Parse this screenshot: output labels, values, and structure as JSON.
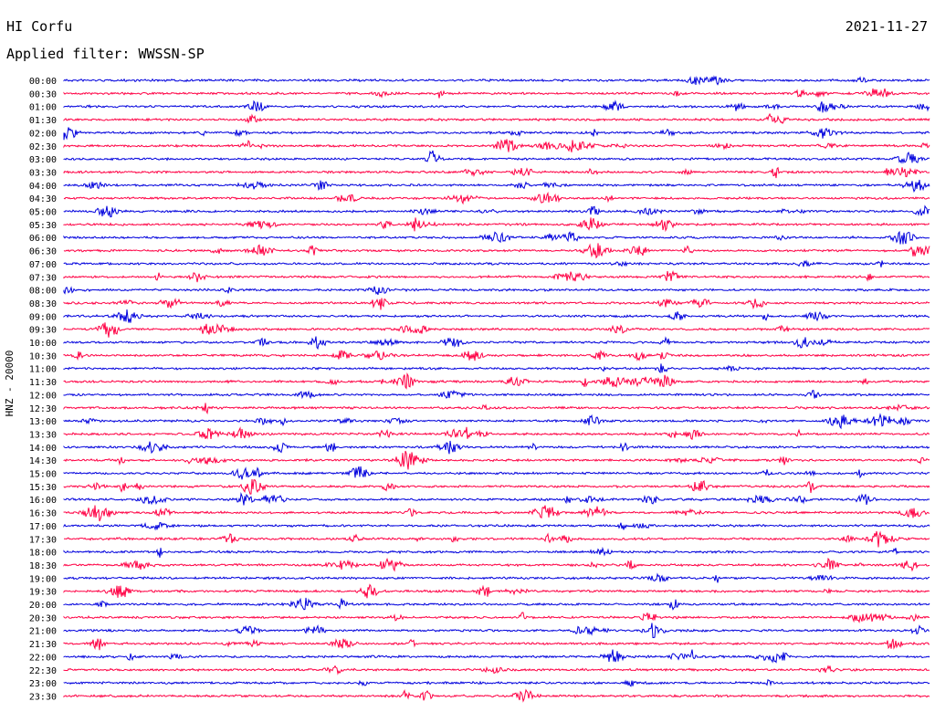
{
  "header": {
    "station": "HI Corfu",
    "date": "2021-11-27",
    "filter": "Applied filter: WWSSN-SP"
  },
  "colors": {
    "odd_trace": "#0000dd",
    "even_trace": "#ff0044",
    "text": "#000000"
  },
  "chart_data": {
    "type": "line",
    "ylabel": "HNZ - 20000",
    "rows": [
      {
        "label": "00:00",
        "color": "blue"
      },
      {
        "label": "00:30",
        "color": "red"
      },
      {
        "label": "01:00",
        "color": "blue"
      },
      {
        "label": "01:30",
        "color": "red"
      },
      {
        "label": "02:00",
        "color": "blue"
      },
      {
        "label": "02:30",
        "color": "red"
      },
      {
        "label": "03:00",
        "color": "blue"
      },
      {
        "label": "03:30",
        "color": "red"
      },
      {
        "label": "04:00",
        "color": "blue"
      },
      {
        "label": "04:30",
        "color": "red"
      },
      {
        "label": "05:00",
        "color": "blue"
      },
      {
        "label": "05:30",
        "color": "red"
      },
      {
        "label": "06:00",
        "color": "blue"
      },
      {
        "label": "06:30",
        "color": "red"
      },
      {
        "label": "07:00",
        "color": "blue"
      },
      {
        "label": "07:30",
        "color": "red"
      },
      {
        "label": "08:00",
        "color": "blue"
      },
      {
        "label": "08:30",
        "color": "red"
      },
      {
        "label": "09:00",
        "color": "blue"
      },
      {
        "label": "09:30",
        "color": "red"
      },
      {
        "label": "10:00",
        "color": "blue"
      },
      {
        "label": "10:30",
        "color": "red"
      },
      {
        "label": "11:00",
        "color": "blue"
      },
      {
        "label": "11:30",
        "color": "red"
      },
      {
        "label": "12:00",
        "color": "blue"
      },
      {
        "label": "12:30",
        "color": "red"
      },
      {
        "label": "13:00",
        "color": "blue"
      },
      {
        "label": "13:30",
        "color": "red"
      },
      {
        "label": "14:00",
        "color": "blue"
      },
      {
        "label": "14:30",
        "color": "red"
      },
      {
        "label": "15:00",
        "color": "blue"
      },
      {
        "label": "15:30",
        "color": "red"
      },
      {
        "label": "16:00",
        "color": "blue"
      },
      {
        "label": "16:30",
        "color": "red"
      },
      {
        "label": "17:00",
        "color": "blue"
      },
      {
        "label": "17:30",
        "color": "red"
      },
      {
        "label": "18:00",
        "color": "blue"
      },
      {
        "label": "18:30",
        "color": "red"
      },
      {
        "label": "19:00",
        "color": "blue"
      },
      {
        "label": "19:30",
        "color": "red"
      },
      {
        "label": "20:00",
        "color": "blue"
      },
      {
        "label": "20:30",
        "color": "red"
      },
      {
        "label": "21:00",
        "color": "blue"
      },
      {
        "label": "21:30",
        "color": "red"
      },
      {
        "label": "22:00",
        "color": "blue"
      },
      {
        "label": "22:30",
        "color": "red"
      },
      {
        "label": "23:00",
        "color": "blue"
      },
      {
        "label": "23:30",
        "color": "red"
      }
    ]
  }
}
